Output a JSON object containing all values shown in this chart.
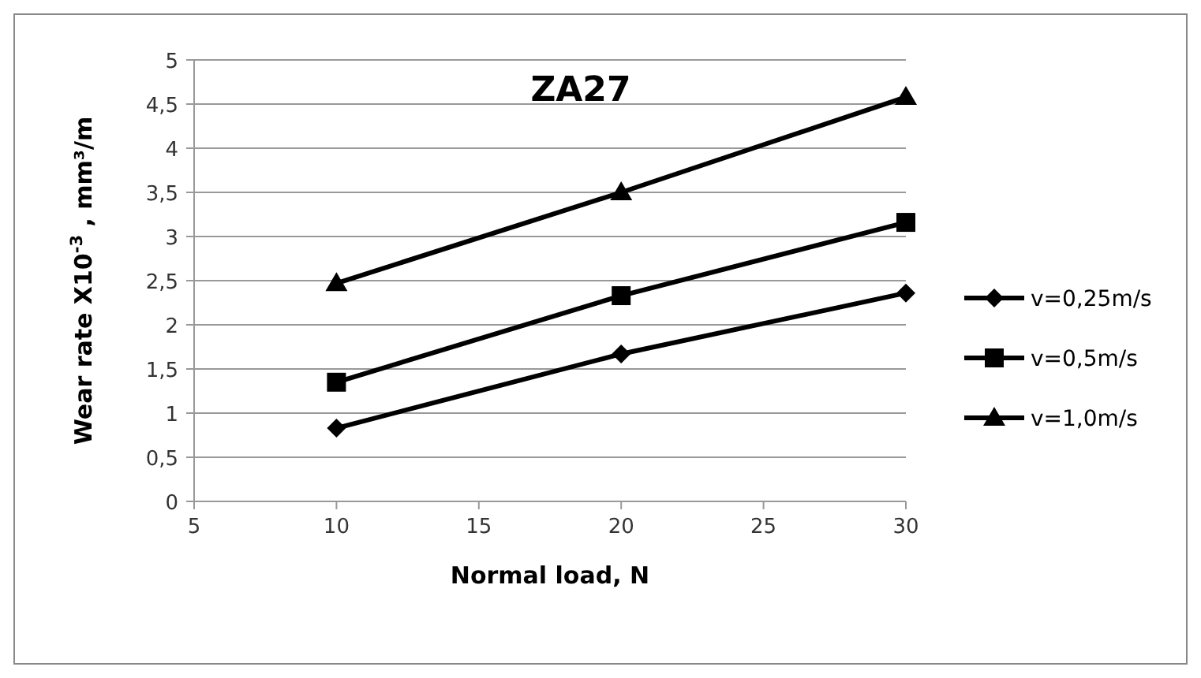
{
  "chart_data": {
    "type": "line",
    "title": "ZA27",
    "xlabel": "Normal load, N",
    "ylabel": "Wear rate X10$^{-3}$ , mm³/m",
    "x": [
      10,
      20,
      30
    ],
    "series": [
      {
        "name": "v=0,25m/s",
        "color": "#000000",
        "marker": "diamond",
        "values": [
          0.83,
          1.67,
          2.36
        ]
      },
      {
        "name": "v=0,5m/s",
        "color": "#000000",
        "marker": "square",
        "values": [
          1.35,
          2.33,
          3.16
        ]
      },
      {
        "name": "v=1,0m/s",
        "color": "#000000",
        "marker": "triangle",
        "values": [
          2.47,
          3.5,
          4.58
        ]
      }
    ],
    "xlim": [
      5,
      30
    ],
    "xticks": [
      5,
      10,
      15,
      20,
      25,
      30
    ],
    "ylim": [
      0,
      5
    ],
    "yticks": [
      0,
      {
        "value": 0.5,
        "label": "0,5"
      },
      1,
      {
        "value": 1.5,
        "label": "1,5"
      },
      2,
      {
        "value": 2.5,
        "label": "2,5"
      },
      3,
      {
        "value": 3.5,
        "label": "3,5"
      },
      4,
      {
        "value": 4.5,
        "label": "4,5"
      },
      5
    ],
    "grid": "y",
    "legend": "right"
  }
}
